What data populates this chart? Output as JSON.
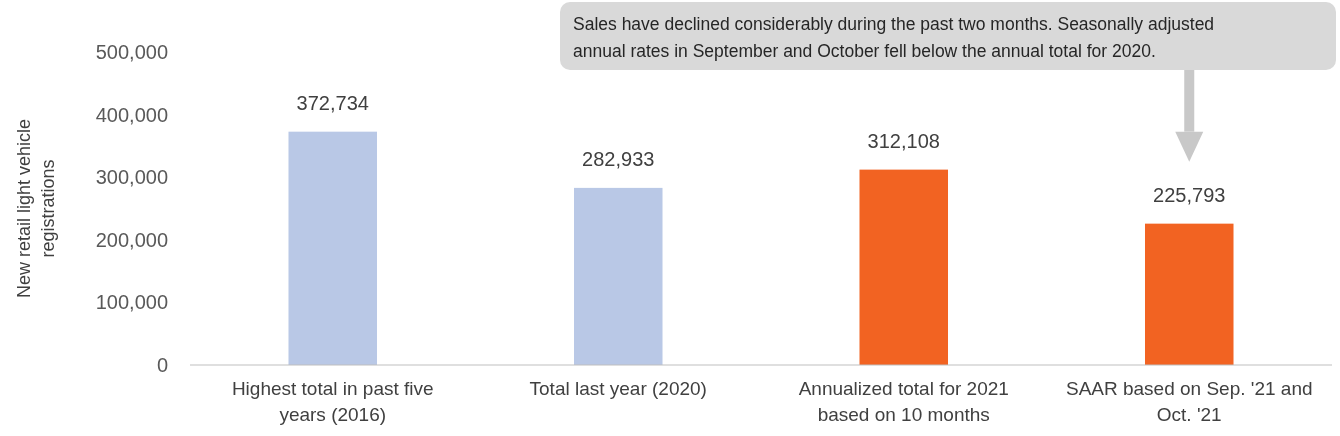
{
  "chart_data": {
    "type": "bar",
    "categories": [
      "Highest total in past five years (2016)",
      "Total last year (2020)",
      "Annualized total for 2021 based on 10 months",
      "SAAR based on Sep. '21 and Oct. '21"
    ],
    "values": [
      372734,
      282933,
      312108,
      225793
    ],
    "colors": [
      "#b9c8e6",
      "#b9c8e6",
      "#f26322",
      "#f26322"
    ],
    "ylabel": "New retail light vehicle registrations",
    "ylim": [
      0,
      500000
    ],
    "yticks": [
      {
        "value": 0,
        "label": "0"
      },
      {
        "value": 100000,
        "label": "100,000"
      },
      {
        "value": 200000,
        "label": "200,000"
      },
      {
        "value": 300000,
        "label": "300,000"
      },
      {
        "value": 400000,
        "label": "400,000"
      },
      {
        "value": 500000,
        "label": "500,000"
      }
    ],
    "value_labels": [
      "372,734",
      "282,933",
      "312,108",
      "225,793"
    ],
    "grid": false,
    "annotations": [
      "Sales have declined considerably during the past two months. Seasonally adjusted annual rates in September and October fell below the annual total for 2020."
    ]
  }
}
